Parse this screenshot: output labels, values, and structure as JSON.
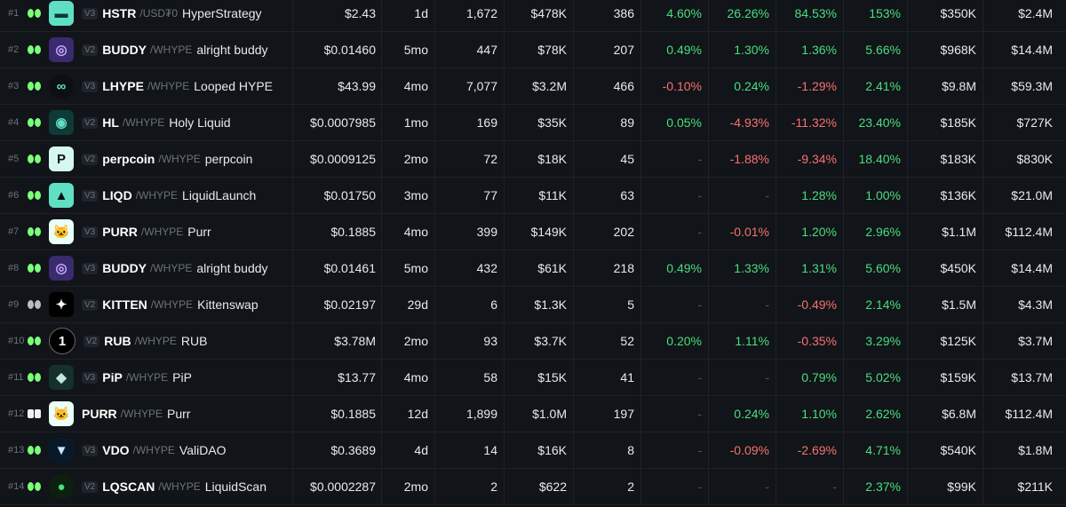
{
  "colors": {
    "positive": "#4ade80",
    "negative": "#f87171",
    "background": "#0d0f12"
  },
  "rows": [
    {
      "rank": "#1",
      "logo": "hyperstrategy-logo",
      "ver": "V3",
      "symbol": "HSTR",
      "quote": "/USD₮0",
      "name": "HyperStrategy",
      "price": "$2.43",
      "age": "1d",
      "txns": "1,672",
      "volume": "$478K",
      "makers": "386",
      "p5m": "4.60%",
      "p1h": "26.26%",
      "p6h": "84.53%",
      "p24h": "153%",
      "liquidity": "$350K",
      "fdv": "$2.4M",
      "c5m": "pos",
      "c1h": "pos",
      "c6h": "pos",
      "c24h": "pos"
    },
    {
      "rank": "#2",
      "logo": "buddy-logo",
      "ver": "V2",
      "symbol": "BUDDY",
      "quote": "/WHYPE",
      "name": "alright buddy",
      "price": "$0.01460",
      "age": "5mo",
      "txns": "447",
      "volume": "$78K",
      "makers": "207",
      "p5m": "0.49%",
      "p1h": "1.30%",
      "p6h": "1.36%",
      "p24h": "5.66%",
      "liquidity": "$968K",
      "fdv": "$14.4M",
      "c5m": "pos",
      "c1h": "pos",
      "c6h": "pos",
      "c24h": "pos"
    },
    {
      "rank": "#3",
      "logo": "infinity-logo",
      "ver": "V3",
      "symbol": "LHYPE",
      "quote": "/WHYPE",
      "name": "Looped HYPE",
      "price": "$43.99",
      "age": "4mo",
      "txns": "7,077",
      "volume": "$3.2M",
      "makers": "466",
      "p5m": "-0.10%",
      "p1h": "0.24%",
      "p6h": "-1.29%",
      "p24h": "2.41%",
      "liquidity": "$9.8M",
      "fdv": "$59.3M",
      "c5m": "neg",
      "c1h": "pos",
      "c6h": "neg",
      "c24h": "pos"
    },
    {
      "rank": "#4",
      "logo": "holy-liquid-logo",
      "ver": "V2",
      "symbol": "HL",
      "quote": "/WHYPE",
      "name": "Holy Liquid",
      "price": "$0.0007985",
      "age": "1mo",
      "txns": "169",
      "volume": "$35K",
      "makers": "89",
      "p5m": "0.05%",
      "p1h": "-4.93%",
      "p6h": "-11.32%",
      "p24h": "23.40%",
      "liquidity": "$185K",
      "fdv": "$727K",
      "c5m": "pos",
      "c1h": "neg",
      "c6h": "neg",
      "c24h": "pos"
    },
    {
      "rank": "#5",
      "logo": "perpcoin-logo",
      "ver": "V2",
      "symbol": "perpcoin",
      "quote": "/WHYPE",
      "name": "perpcoin",
      "price": "$0.0009125",
      "age": "2mo",
      "txns": "72",
      "volume": "$18K",
      "makers": "45",
      "p5m": "-",
      "p1h": "-1.88%",
      "p6h": "-9.34%",
      "p24h": "18.40%",
      "liquidity": "$183K",
      "fdv": "$830K",
      "c5m": "dash",
      "c1h": "neg",
      "c6h": "neg",
      "c24h": "pos"
    },
    {
      "rank": "#6",
      "logo": "liqd-logo",
      "ver": "V3",
      "symbol": "LIQD",
      "quote": "/WHYPE",
      "name": "LiquidLaunch",
      "price": "$0.01750",
      "age": "3mo",
      "txns": "77",
      "volume": "$11K",
      "makers": "63",
      "p5m": "-",
      "p1h": "-",
      "p6h": "1.28%",
      "p24h": "1.00%",
      "liquidity": "$136K",
      "fdv": "$21.0M",
      "c5m": "dash",
      "c1h": "dash",
      "c6h": "pos",
      "c24h": "pos"
    },
    {
      "rank": "#7",
      "logo": "purr-logo",
      "ver": "V3",
      "symbol": "PURR",
      "quote": "/WHYPE",
      "name": "Purr",
      "price": "$0.1885",
      "age": "4mo",
      "txns": "399",
      "volume": "$149K",
      "makers": "202",
      "p5m": "-",
      "p1h": "-0.01%",
      "p6h": "1.20%",
      "p24h": "2.96%",
      "liquidity": "$1.1M",
      "fdv": "$112.4M",
      "c5m": "dash",
      "c1h": "neg",
      "c6h": "pos",
      "c24h": "pos"
    },
    {
      "rank": "#8",
      "logo": "buddy-logo",
      "ver": "V3",
      "symbol": "BUDDY",
      "quote": "/WHYPE",
      "name": "alright buddy",
      "price": "$0.01461",
      "age": "5mo",
      "txns": "432",
      "volume": "$61K",
      "makers": "218",
      "p5m": "0.49%",
      "p1h": "1.33%",
      "p6h": "1.31%",
      "p24h": "5.60%",
      "liquidity": "$450K",
      "fdv": "$14.4M",
      "c5m": "pos",
      "c1h": "pos",
      "c6h": "pos",
      "c24h": "pos"
    },
    {
      "rank": "#9",
      "logo": "kitten-logo",
      "ver": "V2",
      "symbol": "KITTEN",
      "quote": "/WHYPE",
      "name": "Kittenswap",
      "price": "$0.02197",
      "age": "29d",
      "txns": "6",
      "volume": "$1.3K",
      "makers": "5",
      "p5m": "-",
      "p1h": "-",
      "p6h": "-0.49%",
      "p24h": "2.14%",
      "liquidity": "$1.5M",
      "fdv": "$4.3M",
      "c5m": "dash",
      "c1h": "dash",
      "c6h": "neg",
      "c24h": "pos"
    },
    {
      "rank": "#10",
      "logo": "rub-logo",
      "ver": "V2",
      "symbol": "RUB",
      "quote": "/WHYPE",
      "name": "RUB",
      "price": "$3.78M",
      "age": "2mo",
      "txns": "93",
      "volume": "$3.7K",
      "makers": "52",
      "p5m": "0.20%",
      "p1h": "1.11%",
      "p6h": "-0.35%",
      "p24h": "3.29%",
      "liquidity": "$125K",
      "fdv": "$3.7M",
      "c5m": "pos",
      "c1h": "pos",
      "c6h": "neg",
      "c24h": "pos"
    },
    {
      "rank": "#11",
      "logo": "pip-logo",
      "ver": "V3",
      "symbol": "PiP",
      "quote": "/WHYPE",
      "name": "PiP",
      "price": "$13.77",
      "age": "4mo",
      "txns": "58",
      "volume": "$15K",
      "makers": "41",
      "p5m": "-",
      "p1h": "-",
      "p6h": "0.79%",
      "p24h": "5.02%",
      "liquidity": "$159K",
      "fdv": "$13.7M",
      "c5m": "dash",
      "c1h": "dash",
      "c6h": "pos",
      "c24h": "pos"
    },
    {
      "rank": "#12",
      "logo": "purr-logo",
      "ver": "",
      "symbol": "PURR",
      "quote": "/WHYPE",
      "name": "Purr",
      "price": "$0.1885",
      "age": "12d",
      "txns": "1,899",
      "volume": "$1.0M",
      "makers": "197",
      "p5m": "-",
      "p1h": "0.24%",
      "p6h": "1.10%",
      "p24h": "2.62%",
      "liquidity": "$6.8M",
      "fdv": "$112.4M",
      "c5m": "dash",
      "c1h": "pos",
      "c6h": "pos",
      "c24h": "pos"
    },
    {
      "rank": "#13",
      "logo": "validao-logo",
      "ver": "V3",
      "symbol": "VDO",
      "quote": "/WHYPE",
      "name": "ValiDAO",
      "price": "$0.3689",
      "age": "4d",
      "txns": "14",
      "volume": "$16K",
      "makers": "8",
      "p5m": "-",
      "p1h": "-0.09%",
      "p6h": "-2.69%",
      "p24h": "4.71%",
      "liquidity": "$540K",
      "fdv": "$1.8M",
      "c5m": "dash",
      "c1h": "neg",
      "c6h": "neg",
      "c24h": "pos"
    },
    {
      "rank": "#14",
      "logo": "liquidscan-logo",
      "ver": "V2",
      "symbol": "LQSCAN",
      "quote": "/WHYPE",
      "name": "LiquidScan",
      "price": "$0.0002287",
      "age": "2mo",
      "txns": "2",
      "volume": "$622",
      "makers": "2",
      "p5m": "-",
      "p1h": "-",
      "p6h": "-",
      "p24h": "2.37%",
      "liquidity": "$99K",
      "fdv": "$211K",
      "c5m": "dash",
      "c1h": "dash",
      "c6h": "dash",
      "c24h": "pos"
    }
  ]
}
